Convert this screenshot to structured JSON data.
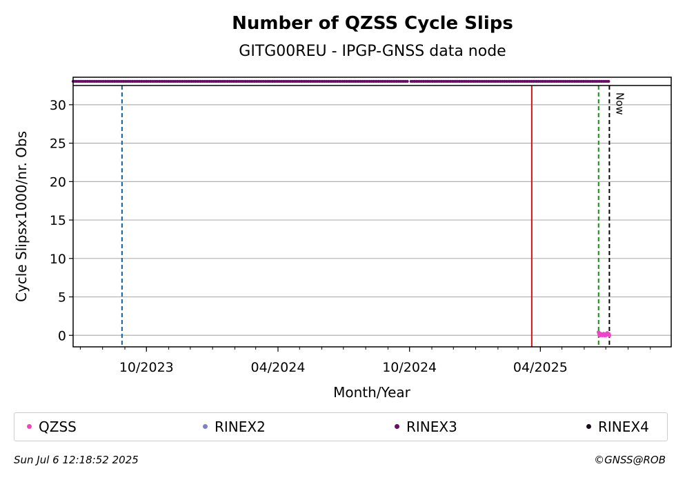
{
  "chart_data": {
    "type": "scatter",
    "title": "Number of QZSS Cycle Slips",
    "subtitle": "GITG00REU - IPGP-GNSS data node",
    "xlabel": "Month/Year",
    "ylabel": "Cycle Slipsx1000/nr. Obs",
    "xlim": [
      "2023-06-21",
      "2025-09-30"
    ],
    "ylim": [
      -1.5,
      32.5
    ],
    "yticks": [
      0,
      5,
      10,
      15,
      20,
      25,
      30
    ],
    "xticks": [
      {
        "date": "2023-10-01",
        "label": "10/2023"
      },
      {
        "date": "2024-04-01",
        "label": "04/2024"
      },
      {
        "date": "2024-10-01",
        "label": "10/2024"
      },
      {
        "date": "2025-04-01",
        "label": "04/2025"
      }
    ],
    "grid": "horizontal",
    "legend_placement": "below",
    "series": [
      {
        "name": "QZSS",
        "color": "#f045c8",
        "points": [
          [
            "2025-06-21",
            0.4
          ],
          [
            "2025-06-22",
            0.1
          ],
          [
            "2025-06-23",
            0.0
          ],
          [
            "2025-06-24",
            0.2
          ],
          [
            "2025-06-25",
            0.1
          ],
          [
            "2025-06-26",
            0.0
          ],
          [
            "2025-06-27",
            0.1
          ],
          [
            "2025-06-28",
            0.2
          ],
          [
            "2025-06-29",
            0.0
          ],
          [
            "2025-06-30",
            0.1
          ],
          [
            "2025-07-01",
            0.0
          ],
          [
            "2025-07-02",
            0.2
          ],
          [
            "2025-07-03",
            0.3
          ],
          [
            "2025-07-04",
            0.1
          ],
          [
            "2025-07-05",
            0.2
          ],
          [
            "2025-07-06",
            0.0
          ]
        ]
      },
      {
        "name": "RINEX2",
        "color": "#8080c0",
        "points": []
      },
      {
        "name": "RINEX3",
        "color": "#6a0a6a",
        "strip_ranges": [
          [
            "2023-06-21",
            "2024-09-28"
          ],
          [
            "2024-10-03",
            "2025-07-06"
          ]
        ]
      },
      {
        "name": "RINEX4",
        "color": "#1a0a1a",
        "points": []
      }
    ],
    "vertical_lines": [
      {
        "date": "2023-08-28",
        "color": "#1060a0",
        "style": "dashed"
      },
      {
        "date": "2025-03-20",
        "color": "#d01010",
        "style": "solid"
      },
      {
        "date": "2025-06-21",
        "color": "#109010",
        "style": "dashed"
      },
      {
        "date": "2025-07-06",
        "color": "#000000",
        "style": "dashed",
        "label": "Now"
      }
    ]
  },
  "footer": {
    "timestamp": "Sun Jul  6 12:18:52 2025",
    "credit": "©GNSS@ROB"
  }
}
